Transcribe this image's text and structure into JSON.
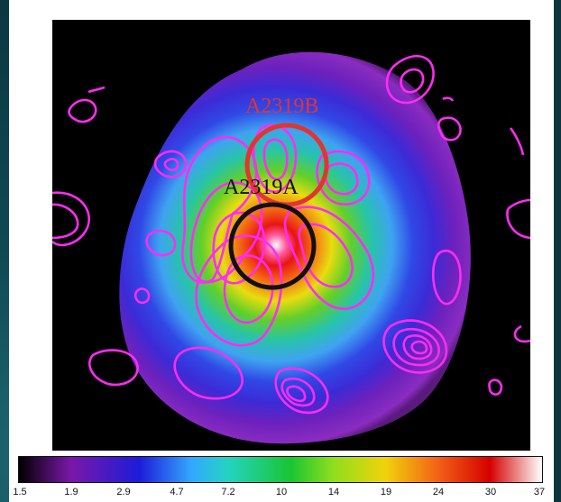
{
  "labels": {
    "cluster_b": "A2319B",
    "cluster_a": "A2319A"
  },
  "colorbar": {
    "ticks": [
      "1.5",
      "1.9",
      "2.9",
      "4.7",
      "7.2",
      "10",
      "14",
      "19",
      "24",
      "30",
      "37"
    ],
    "colors": [
      "#000000",
      "#7a18a8",
      "#1c1cd8",
      "#33a8ff",
      "#25d3c1",
      "#19c531",
      "#8ede1e",
      "#f0d30b",
      "#f26316",
      "#d60000",
      "#ffffff"
    ]
  },
  "map_colors": {
    "background": "#000000",
    "contour": "#ff2cf3",
    "circle_b": "#e3342f",
    "circle_a": "#111111"
  }
}
